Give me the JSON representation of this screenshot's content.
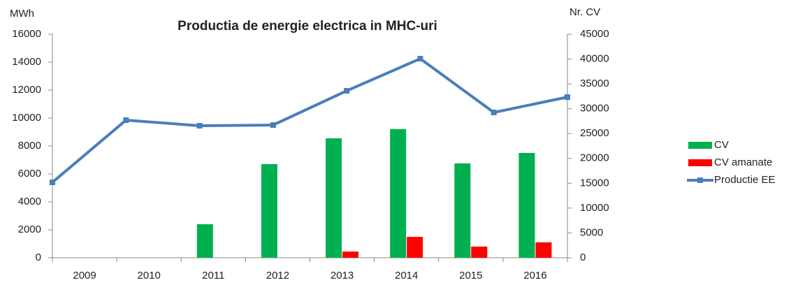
{
  "chart_data": {
    "type": "bar_line",
    "title": "Productia de energie electrica in MHC-uri",
    "y_label": "MWh",
    "y2_label": "Nr. CV",
    "categories": [
      "2009",
      "2010",
      "2011",
      "2012",
      "2013",
      "2014",
      "2015",
      "2016"
    ],
    "series": [
      {
        "name": "CV",
        "color": "#00b050",
        "kind": "bar",
        "axis": "y2",
        "values": [
          0,
          0,
          6750,
          18850,
          24050,
          25900,
          19000,
          21100
        ]
      },
      {
        "name": "CV amanate",
        "color": "#ff0000",
        "kind": "bar",
        "axis": "y2",
        "values": [
          0,
          0,
          0,
          0,
          1250,
          4200,
          2250,
          3100
        ]
      },
      {
        "name": "Productie EE",
        "color": "#4a7ebb",
        "kind": "line",
        "axis": "y",
        "values": [
          5400,
          9850,
          9450,
          9500,
          11950,
          14250,
          10400,
          11500
        ]
      }
    ],
    "ylim": [
      0,
      16000
    ],
    "yticks": [
      0,
      2000,
      4000,
      6000,
      8000,
      10000,
      12000,
      14000,
      16000
    ],
    "y2lim": [
      0,
      45000
    ],
    "y2ticks": [
      0,
      5000,
      10000,
      15000,
      20000,
      25000,
      30000,
      35000,
      40000,
      45000
    ],
    "legend": "right"
  }
}
